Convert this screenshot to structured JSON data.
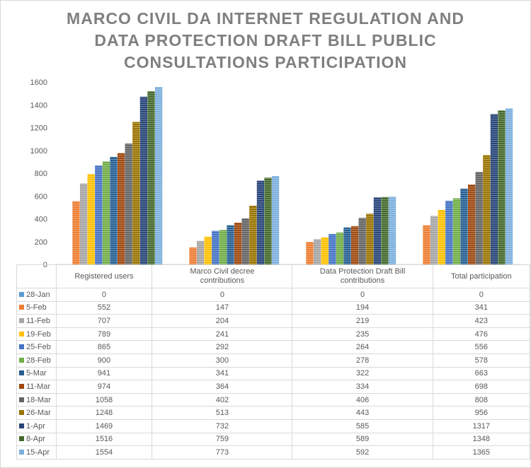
{
  "chart_data": {
    "type": "bar",
    "title": "MARCO CIVIL DA INTERNET REGULATION AND DATA PROTECTION DRAFT BILL PUBLIC CONSULTATIONS PARTICIPATION",
    "title_lines": [
      "MARCO CIVIL DA INTERNET REGULATION AND",
      "DATA PROTECTION DRAFT BILL PUBLIC",
      "CONSULTATIONS PARTICIPATION"
    ],
    "categories": [
      "Registered users",
      "Marco Civil decree contributions",
      "Data Protection Draft Bill contributions",
      "Total participation"
    ],
    "ylim": [
      0,
      1800
    ],
    "yticks": [
      "0",
      "200",
      "400",
      "600",
      "800",
      "1000",
      "1200",
      "1400",
      "1600",
      "1800"
    ],
    "grid": false,
    "legend": "data-table",
    "series": [
      {
        "name": "28-Jan",
        "color": "#5B9BD5",
        "values": [
          0,
          0,
          0,
          0
        ]
      },
      {
        "name": "5-Feb",
        "color": "#ED7D31",
        "values": [
          552,
          147,
          194,
          341
        ]
      },
      {
        "name": "11-Feb",
        "color": "#A5A5A5",
        "values": [
          707,
          204,
          219,
          423
        ]
      },
      {
        "name": "19-Feb",
        "color": "#FFC000",
        "values": [
          789,
          241,
          235,
          476
        ]
      },
      {
        "name": "25-Feb",
        "color": "#4472C4",
        "values": [
          865,
          292,
          264,
          556
        ]
      },
      {
        "name": "28-Feb",
        "color": "#70AD47",
        "values": [
          900,
          300,
          278,
          578
        ]
      },
      {
        "name": "5-Mar",
        "color": "#255E91",
        "values": [
          941,
          341,
          322,
          663
        ]
      },
      {
        "name": "11-Mar",
        "color": "#9E480E",
        "values": [
          974,
          364,
          334,
          698
        ]
      },
      {
        "name": "18-Mar",
        "color": "#636363",
        "values": [
          1058,
          402,
          406,
          808
        ]
      },
      {
        "name": "26-Mar",
        "color": "#997300",
        "values": [
          1248,
          513,
          443,
          956
        ]
      },
      {
        "name": "1-Apr",
        "color": "#264478",
        "values": [
          1469,
          732,
          585,
          1317
        ]
      },
      {
        "name": "8-Apr",
        "color": "#43682B",
        "values": [
          1516,
          759,
          589,
          1348
        ]
      },
      {
        "name": "15-Apr",
        "color": "#7CAFDD",
        "values": [
          1554,
          773,
          592,
          1365
        ]
      }
    ]
  }
}
